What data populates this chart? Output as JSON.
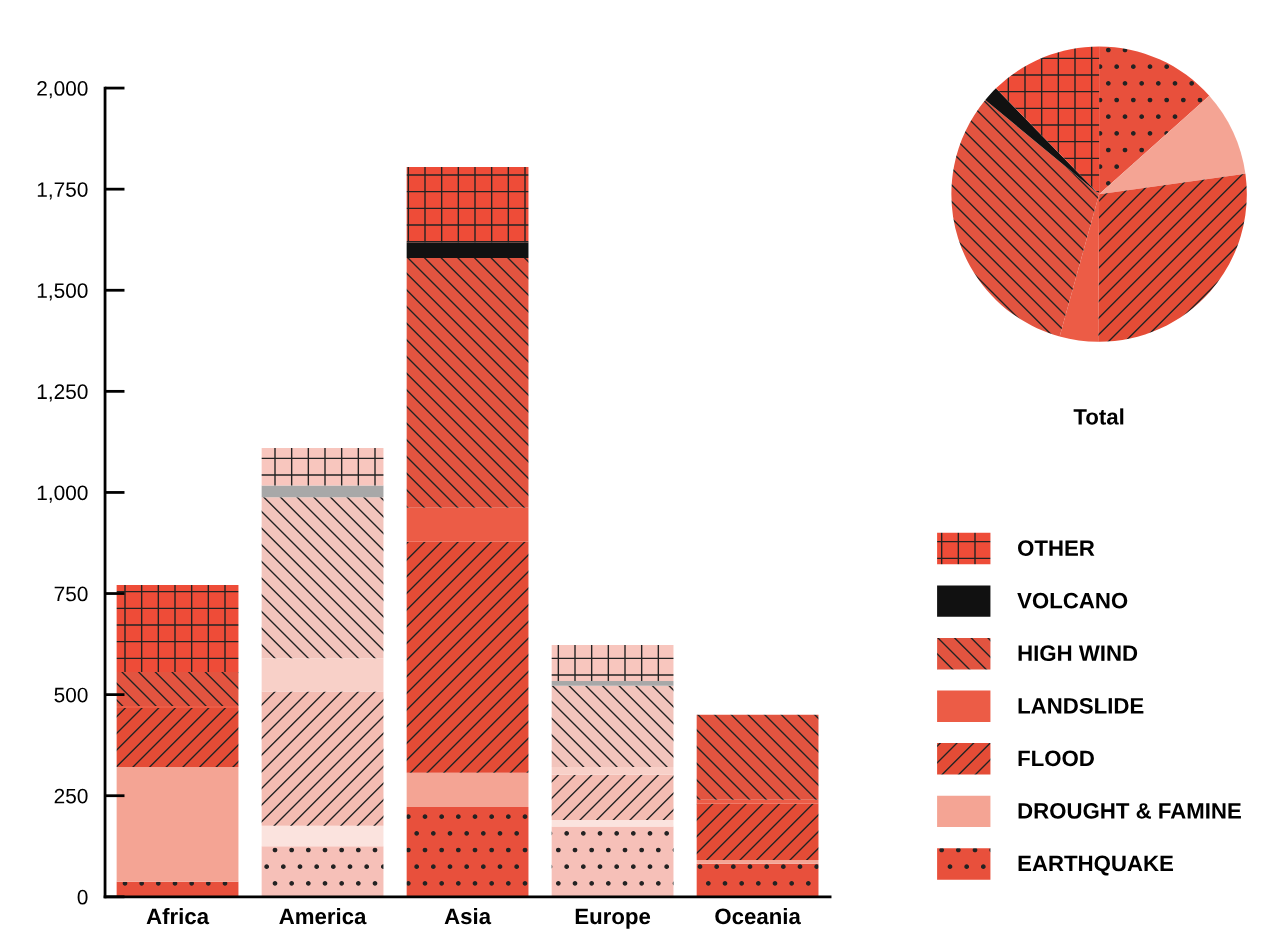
{
  "chart_data": [
    {
      "type": "bar",
      "stacked": true,
      "categories": [
        "Africa",
        "America",
        "Asia",
        "Europe",
        "Oceania"
      ],
      "series": [
        {
          "name": "EARTHQUAKE",
          "color": "#e8503c",
          "colors": [
            "#e8503c",
            "#f6c0b8",
            "#e8503c",
            "#f6c0b8",
            "#e8503c"
          ],
          "values": [
            37,
            125,
            222,
            174,
            82
          ]
        },
        {
          "name": "DROUGHT & FAMINE",
          "color": "#f4a494",
          "colors": [
            "#f4a494",
            "#fbe3de",
            "#f4a494",
            "#fbe3de",
            "#f4a494"
          ],
          "values": [
            284,
            51,
            85,
            16,
            9
          ]
        },
        {
          "name": "FLOOD",
          "color": "#e44c36",
          "colors": [
            "#e44c36",
            "#f4bcb2",
            "#e44c36",
            "#f4bcb2",
            "#e44c36"
          ],
          "values": [
            146,
            332,
            571,
            112,
            139
          ]
        },
        {
          "name": "LANDSLIDE",
          "color": "#ec5c46",
          "colors": [
            "#ec5c46",
            "#f8d0c8",
            "#ec5c46",
            "#f8d0c8",
            "#ec5c46"
          ],
          "values": [
            5,
            82,
            84,
            19,
            10
          ]
        },
        {
          "name": "HIGH WIND",
          "color": "#e25440",
          "colors": [
            "#e25440",
            "#f2c4bc",
            "#e25440",
            "#f2c4bc",
            "#e25440"
          ],
          "values": [
            84,
            398,
            618,
            201,
            210
          ]
        },
        {
          "name": "VOLCANO",
          "color": "#111111",
          "colors": [
            "#111111",
            "#a8a8a8",
            "#111111",
            "#a8a8a8",
            "#111111"
          ],
          "values": [
            0,
            29,
            39,
            12,
            0
          ]
        },
        {
          "name": "OTHER",
          "color": "#ee4c38",
          "colors": [
            "#ee4c38",
            "#f8c6be",
            "#ee4c38",
            "#f8c6be",
            "#ee4c38"
          ],
          "values": [
            215,
            93,
            186,
            89,
            0
          ]
        }
      ],
      "ylim": [
        0,
        2000
      ],
      "yticks": [
        0,
        250,
        500,
        750,
        {
          "value": 1000,
          "label": "1,000"
        },
        {
          "value": 1250,
          "label": "1,250"
        },
        {
          "value": 1500,
          "label": "1,500"
        },
        {
          "value": 1750,
          "label": "1,750"
        },
        {
          "value": 2000,
          "label": "2,000"
        }
      ],
      "grid": false,
      "legend": "right"
    },
    {
      "type": "pie",
      "xlabel": "Total",
      "categories": [
        null,
        null,
        null,
        null,
        null,
        null,
        null
      ],
      "values": [
        13.4,
        9.4,
        27.3,
        4.2,
        31.7,
        1.7,
        12.3
      ],
      "colors": [
        "#e8503c",
        "#f4a494",
        "#e44c36",
        "#ec5c46",
        "#e25440",
        "#111111",
        "#ee4c38"
      ]
    }
  ]
}
